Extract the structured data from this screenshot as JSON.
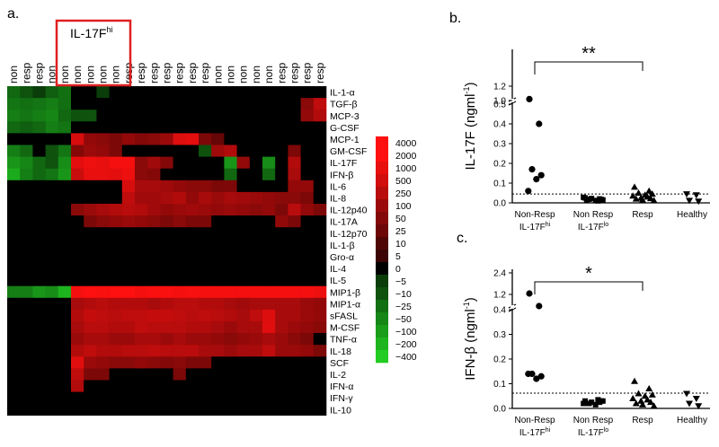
{
  "panel_labels": {
    "a": "a.",
    "b": "b.",
    "c": "c."
  },
  "colors": {
    "hot": "#ff1010",
    "cold": "#22cc22",
    "box": "#e02020"
  },
  "chart_data": [
    {
      "type": "heatmap",
      "highlight_label": "IL-17F",
      "highlight_superscript": "hi",
      "highlight_columns": [
        3,
        8
      ],
      "columns": [
        "non",
        "resp",
        "resp",
        "non",
        "non",
        "non",
        "non",
        "non",
        "non",
        "resp",
        "resp",
        "resp",
        "resp",
        "resp",
        "resp",
        "resp",
        "non",
        "non",
        "non",
        "non",
        "non",
        "resp",
        "resp",
        "resp",
        "resp"
      ],
      "rows": [
        "IL-1-α",
        "TGF-β",
        "MCP-3",
        "G-CSF",
        "MCP-1",
        "GM-CSF",
        "IL-17F",
        "IFN-β",
        "IL-6",
        "IL-8",
        "IL-12p40",
        "IL-17A",
        "IL-12p70",
        "IL-1-β",
        "Gro-α",
        "IL-4",
        "IL-5",
        "MIP1-β",
        "MIP1-α",
        "sFASL",
        "M-CSF",
        "TNF-α",
        "IL-18",
        "SCF",
        "IL-2",
        "IFN-α",
        "IFN-γ",
        "IL-10"
      ],
      "colorscale_labels": [
        "4000",
        "2000",
        "1000",
        "500",
        "250",
        "100",
        "50",
        "25",
        "10",
        "5",
        "0",
        "−5",
        "−10",
        "−25",
        "−50",
        "−100",
        "−200",
        "−400"
      ],
      "values": [
        [
          -20,
          -10,
          -5,
          -15,
          -25,
          0,
          0,
          -5,
          0,
          0,
          0,
          0,
          0,
          0,
          0,
          0,
          0,
          0,
          0,
          0,
          0,
          0,
          0,
          0,
          0
        ],
        [
          -30,
          -25,
          -30,
          -40,
          -25,
          0,
          0,
          0,
          0,
          0,
          0,
          0,
          0,
          0,
          0,
          0,
          0,
          0,
          0,
          0,
          0,
          0,
          0,
          60,
          300
        ],
        [
          -40,
          -30,
          -40,
          -50,
          -20,
          -10,
          -10,
          0,
          0,
          0,
          0,
          0,
          0,
          0,
          0,
          0,
          0,
          0,
          0,
          0,
          0,
          0,
          0,
          80,
          200
        ],
        [
          -20,
          -15,
          -20,
          -40,
          -30,
          0,
          0,
          0,
          0,
          0,
          0,
          0,
          0,
          0,
          0,
          0,
          0,
          0,
          0,
          0,
          0,
          0,
          0,
          0,
          0
        ],
        [
          0,
          0,
          0,
          0,
          0,
          600,
          80,
          60,
          40,
          80,
          50,
          60,
          100,
          700,
          900,
          40,
          20,
          0,
          0,
          0,
          0,
          0,
          0,
          0,
          0
        ],
        [
          -40,
          -20,
          0,
          -10,
          -30,
          50,
          100,
          80,
          40,
          0,
          0,
          0,
          0,
          0,
          0,
          -10,
          120,
          200,
          0,
          0,
          0,
          0,
          40,
          0,
          0
        ],
        [
          -80,
          -50,
          -20,
          -10,
          -60,
          900,
          1200,
          1000,
          1500,
          1500,
          60,
          120,
          50,
          0,
          0,
          0,
          0,
          -80,
          80,
          0,
          -60,
          0,
          200,
          0,
          0
        ],
        [
          -150,
          -40,
          -20,
          -30,
          -80,
          400,
          1000,
          1000,
          900,
          1200,
          60,
          50,
          0,
          0,
          0,
          0,
          0,
          -20,
          0,
          0,
          -20,
          0,
          150,
          0,
          0
        ],
        [
          0,
          0,
          0,
          0,
          0,
          0,
          0,
          0,
          0,
          600,
          150,
          150,
          120,
          80,
          60,
          60,
          40,
          40,
          0,
          0,
          0,
          0,
          80,
          80,
          0
        ],
        [
          0,
          0,
          0,
          0,
          0,
          0,
          0,
          0,
          0,
          300,
          120,
          120,
          150,
          200,
          80,
          150,
          100,
          150,
          120,
          100,
          80,
          60,
          60,
          40,
          0
        ],
        [
          0,
          0,
          0,
          0,
          0,
          60,
          100,
          150,
          200,
          250,
          200,
          120,
          80,
          100,
          120,
          100,
          80,
          100,
          80,
          60,
          80,
          40,
          250,
          80,
          40
        ],
        [
          0,
          0,
          0,
          0,
          0,
          0,
          40,
          60,
          80,
          100,
          80,
          60,
          40,
          60,
          40,
          40,
          0,
          0,
          0,
          0,
          0,
          80,
          40,
          0,
          0
        ],
        [
          0,
          0,
          0,
          0,
          0,
          0,
          0,
          0,
          0,
          0,
          0,
          0,
          0,
          0,
          0,
          0,
          0,
          0,
          0,
          0,
          0,
          0,
          0,
          0,
          0
        ],
        [
          0,
          0,
          0,
          0,
          0,
          0,
          0,
          0,
          0,
          0,
          0,
          0,
          0,
          0,
          0,
          0,
          0,
          0,
          0,
          0,
          0,
          0,
          0,
          0,
          0
        ],
        [
          0,
          0,
          0,
          0,
          0,
          0,
          0,
          0,
          0,
          0,
          0,
          0,
          0,
          0,
          0,
          0,
          0,
          0,
          0,
          0,
          0,
          0,
          0,
          0,
          0
        ],
        [
          0,
          0,
          0,
          0,
          0,
          0,
          0,
          0,
          0,
          0,
          0,
          0,
          0,
          0,
          0,
          0,
          0,
          0,
          0,
          0,
          0,
          0,
          0,
          0,
          0
        ],
        [
          0,
          0,
          0,
          0,
          0,
          0,
          0,
          0,
          0,
          0,
          0,
          0,
          0,
          0,
          0,
          0,
          0,
          0,
          0,
          0,
          0,
          0,
          0,
          0,
          0
        ],
        [
          -40,
          -40,
          -80,
          -60,
          -200,
          1500,
          2000,
          1800,
          2000,
          2000,
          1500,
          1800,
          1800,
          1500,
          1600,
          1500,
          1500,
          1500,
          1500,
          1500,
          1500,
          1500,
          1500,
          1500,
          1200
        ],
        [
          0,
          0,
          0,
          0,
          0,
          150,
          200,
          250,
          200,
          200,
          200,
          150,
          200,
          250,
          250,
          200,
          200,
          150,
          120,
          150,
          150,
          150,
          150,
          100,
          80
        ],
        [
          0,
          0,
          0,
          0,
          0,
          200,
          350,
          300,
          250,
          300,
          300,
          350,
          350,
          300,
          250,
          300,
          250,
          200,
          150,
          300,
          700,
          150,
          150,
          100,
          80
        ],
        [
          0,
          0,
          0,
          0,
          0,
          150,
          250,
          250,
          200,
          200,
          300,
          250,
          250,
          250,
          200,
          200,
          150,
          100,
          150,
          150,
          800,
          150,
          100,
          80,
          60
        ],
        [
          0,
          0,
          0,
          0,
          0,
          100,
          150,
          150,
          100,
          100,
          150,
          150,
          100,
          150,
          100,
          100,
          80,
          60,
          80,
          100,
          150,
          100,
          60,
          40,
          0
        ],
        [
          0,
          0,
          0,
          0,
          0,
          200,
          300,
          200,
          200,
          250,
          250,
          300,
          250,
          250,
          250,
          150,
          150,
          100,
          150,
          150,
          300,
          100,
          100,
          80,
          40
        ],
        [
          0,
          0,
          0,
          0,
          0,
          800,
          100,
          80,
          60,
          60,
          80,
          60,
          50,
          60,
          40,
          40,
          0,
          0,
          0,
          0,
          0,
          0,
          0,
          0,
          0
        ],
        [
          0,
          0,
          0,
          0,
          0,
          300,
          40,
          40,
          0,
          0,
          0,
          0,
          0,
          40,
          0,
          0,
          0,
          0,
          0,
          0,
          0,
          0,
          0,
          0,
          0
        ],
        [
          0,
          0,
          0,
          0,
          0,
          200,
          0,
          0,
          0,
          0,
          0,
          0,
          0,
          0,
          0,
          0,
          0,
          0,
          0,
          0,
          0,
          0,
          0,
          0,
          0
        ],
        [
          0,
          0,
          0,
          0,
          0,
          0,
          0,
          0,
          0,
          0,
          0,
          0,
          0,
          0,
          0,
          0,
          0,
          0,
          0,
          0,
          0,
          0,
          0,
          0,
          0
        ],
        [
          0,
          0,
          0,
          0,
          0,
          0,
          0,
          0,
          0,
          0,
          0,
          0,
          0,
          0,
          0,
          0,
          0,
          0,
          0,
          0,
          0,
          0,
          0,
          0,
          0
        ]
      ]
    },
    {
      "type": "scatter",
      "ylabel": "IL-17F",
      "yunit": "(ngml",
      "yunit_sup": "-1",
      "yunit_close": ")",
      "yticks": [
        "0.0",
        "0.1",
        "0.2",
        "0.3",
        "0.4",
        "0.5",
        "1.0",
        "1.2"
      ],
      "significance": "**",
      "threshold": 0.045,
      "groups": [
        {
          "label": "Non-Resp",
          "sub": "IL-17F",
          "sub_sup": "hi",
          "marker": "circle",
          "values": [
            1.02,
            0.4,
            0.17,
            0.14,
            0.12,
            0.06
          ]
        },
        {
          "label": "Non Resp",
          "sub": "IL-17F",
          "sub_sup": "lo",
          "marker": "square",
          "values": [
            0.025,
            0.02,
            0.018,
            0.015,
            0.012,
            0.028,
            0.01,
            0.022,
            0.017,
            0.013
          ]
        },
        {
          "label": "Resp",
          "sub": "",
          "sub_sup": "",
          "marker": "triangle",
          "values": [
            0.08,
            0.06,
            0.05,
            0.045,
            0.04,
            0.035,
            0.03,
            0.025,
            0.022,
            0.02,
            0.015,
            0.012
          ]
        },
        {
          "label": "Healthy",
          "sub": "",
          "sub_sup": "",
          "marker": "triangle-down",
          "values": [
            0.045,
            0.04,
            0.012,
            0.008
          ]
        }
      ]
    },
    {
      "type": "scatter",
      "ylabel": "IFN-β",
      "yunit": "(ngml",
      "yunit_sup": "-1",
      "yunit_close": ")",
      "yticks": [
        "0.0",
        "0.1",
        "0.2",
        "0.3",
        "0.4",
        "1.2",
        "2.4"
      ],
      "significance": "*",
      "threshold": 0.062,
      "groups": [
        {
          "label": "Non-Resp",
          "sub": "IL-17F",
          "sub_sup": "hi",
          "marker": "circle",
          "values": [
            1.25,
            0.55,
            0.14,
            0.13,
            0.12,
            0.14
          ]
        },
        {
          "label": "Non Resp",
          "sub": "IL-17F",
          "sub_sup": "lo",
          "marker": "square",
          "values": [
            0.03,
            0.025,
            0.02,
            0.03,
            0.015,
            0.02,
            0.035,
            0.025,
            0.03,
            0.02
          ]
        },
        {
          "label": "Resp",
          "sub": "",
          "sub_sup": "",
          "marker": "triangle",
          "values": [
            0.11,
            0.08,
            0.06,
            0.055,
            0.05,
            0.04,
            0.035,
            0.03,
            0.025,
            0.02,
            0.015,
            0.01
          ]
        },
        {
          "label": "Healthy",
          "sub": "",
          "sub_sup": "",
          "marker": "triangle-down",
          "values": [
            0.06,
            0.04,
            0.02,
            0.01
          ]
        }
      ]
    }
  ]
}
